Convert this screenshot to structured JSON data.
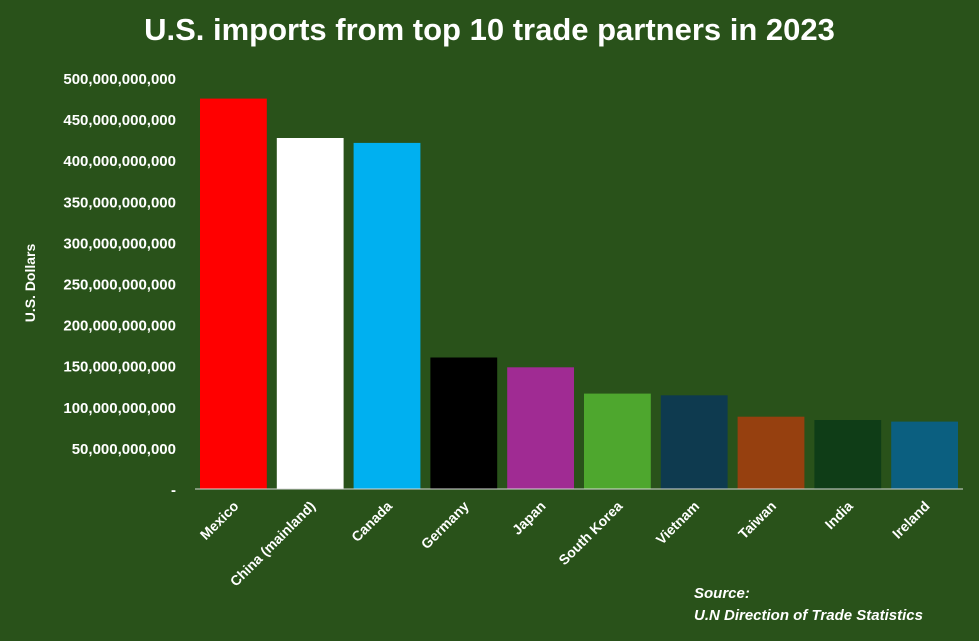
{
  "chart_data": {
    "type": "bar",
    "title": "U.S. imports from top 10 trade partners in 2023",
    "ylabel": "U.S. Dollars",
    "xlabel": "",
    "categories": [
      "Mexico",
      "China (mainland)",
      "Canada",
      "Germany",
      "Japan",
      "South Korea",
      "Vietnam",
      "Taiwan",
      "India",
      "Ireland"
    ],
    "values": [
      475000000000,
      427000000000,
      421000000000,
      160000000000,
      148000000000,
      116000000000,
      114000000000,
      88000000000,
      84000000000,
      82000000000
    ],
    "colors": [
      "#ff0000",
      "#ffffff",
      "#00b0f0",
      "#000000",
      "#a02b93",
      "#4ea72e",
      "#0e3a4f",
      "#96400f",
      "#0f3d17",
      "#0b5f80"
    ],
    "ylim": [
      0,
      500000000000
    ],
    "yticks": [
      0,
      50000000000,
      100000000000,
      150000000000,
      200000000000,
      250000000000,
      300000000000,
      350000000000,
      400000000000,
      450000000000,
      500000000000
    ],
    "ytick_labels": [
      "-",
      "50,000,000,000",
      "100,000,000,000",
      "150,000,000,000",
      "200,000,000,000",
      "250,000,000,000",
      "300,000,000,000",
      "350,000,000,000",
      "400,000,000,000",
      "450,000,000,000",
      "500,000,000,000"
    ],
    "grid": false,
    "legend": "none"
  },
  "source": {
    "label": "Source:",
    "text": "U.N Direction of Trade Statistics"
  },
  "colors": {
    "background": "#29521a",
    "text": "#ffffff",
    "axis_line": "#d9d9d9"
  }
}
